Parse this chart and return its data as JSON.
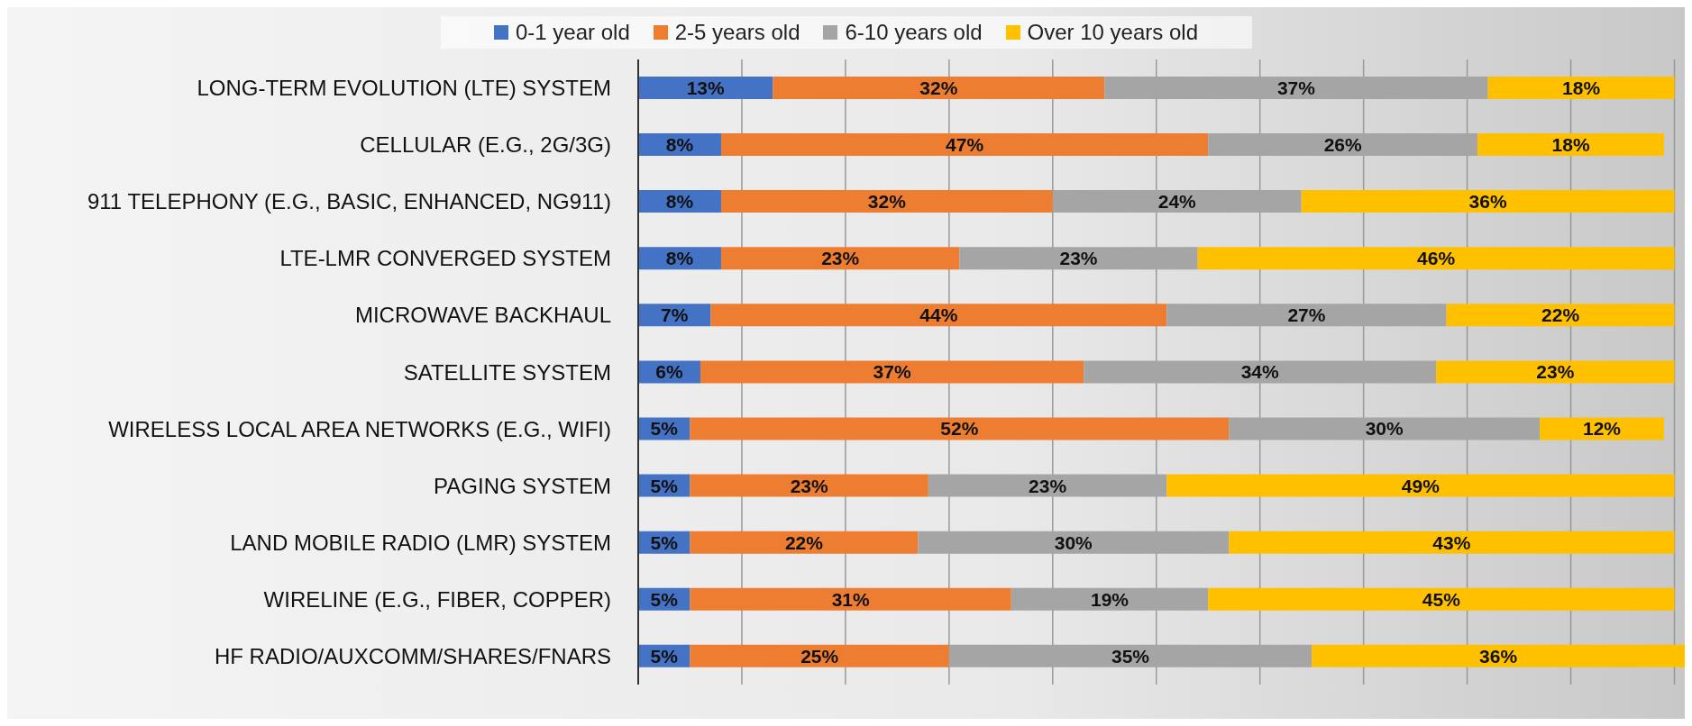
{
  "chart_data": {
    "type": "bar",
    "orientation": "horizontal",
    "stacked": true,
    "categories": [
      "LONG-TERM EVOLUTION (LTE) SYSTEM",
      "CELLULAR (E.G., 2G/3G)",
      "911 TELEPHONY (E.G., BASIC, ENHANCED, NG911)",
      "LTE-LMR CONVERGED SYSTEM",
      "MICROWAVE BACKHAUL",
      "SATELLITE SYSTEM",
      "WIRELESS LOCAL AREA NETWORKS (E.G., WIFI)",
      "PAGING SYSTEM",
      "LAND MOBILE RADIO (LMR) SYSTEM",
      "WIRELINE (E.G., FIBER, COPPER)",
      "HF RADIO/AUXCOMM/SHARES/FNARS"
    ],
    "series": [
      {
        "name": "0-1 year old",
        "color": "#4472c4",
        "values": [
          13,
          8,
          8,
          8,
          7,
          6,
          5,
          5,
          5,
          5,
          5
        ],
        "value_labels": [
          "13%",
          "8%",
          "8%",
          "8%",
          "7%",
          "6%",
          "5%",
          "5%",
          "5%",
          "5%",
          "5%"
        ]
      },
      {
        "name": "2-5 years old",
        "color": "#ed7d31",
        "values": [
          32,
          47,
          32,
          23,
          44,
          37,
          52,
          23,
          22,
          31,
          25
        ],
        "value_labels": [
          "32%",
          "47%",
          "32%",
          "23%",
          "44%",
          "37%",
          "52%",
          "23%",
          "22%",
          "31%",
          "25%"
        ]
      },
      {
        "name": "6-10 years old",
        "color": "#a5a5a5",
        "values": [
          37,
          26,
          24,
          23,
          27,
          34,
          30,
          23,
          30,
          19,
          35
        ],
        "value_labels": [
          "37%",
          "26%",
          "24%",
          "23%",
          "27%",
          "34%",
          "30%",
          "23%",
          "30%",
          "19%",
          "35%"
        ]
      },
      {
        "name": "Over 10 years old",
        "color": "#ffc000",
        "values": [
          18,
          18,
          36,
          46,
          22,
          23,
          12,
          49,
          43,
          45,
          36
        ],
        "value_labels": [
          "18%",
          "18%",
          "36%",
          "46%",
          "22%",
          "23%",
          "12%",
          "49%",
          "43%",
          "45%",
          "36%"
        ]
      }
    ],
    "xlim": [
      0,
      101
    ],
    "xticks": [
      {
        "value": 0,
        "label": null
      },
      {
        "value": 10,
        "label": null
      },
      {
        "value": 20,
        "label": null
      },
      {
        "value": 30,
        "label": null
      },
      {
        "value": 40,
        "label": null
      },
      {
        "value": 50,
        "label": null
      },
      {
        "value": 60,
        "label": null
      },
      {
        "value": 70,
        "label": null
      },
      {
        "value": 80,
        "label": null
      },
      {
        "value": 90,
        "label": null
      },
      {
        "value": 100,
        "label": null
      }
    ],
    "tick_labels": "y",
    "grid": "x",
    "legend": "top"
  }
}
